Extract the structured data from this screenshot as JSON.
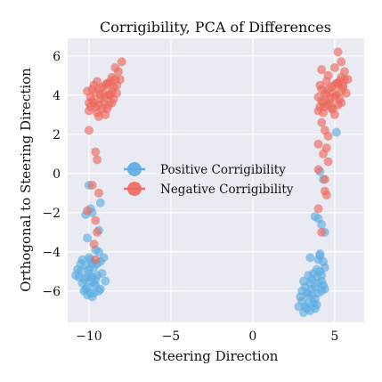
{
  "chart_data": {
    "type": "scatter",
    "title": "Corrigibility, PCA of Differences",
    "xlabel": "Steering Direction",
    "ylabel": "Orthogonal to Steering Direction",
    "xlim": [
      -11.3,
      6.8
    ],
    "ylim": [
      -7.6,
      6.9
    ],
    "xticks": [
      -10,
      -5,
      0,
      5
    ],
    "yticks": [
      -6,
      -4,
      -2,
      0,
      2,
      4,
      6
    ],
    "xtick_labels": [
      "−10",
      "−5",
      "0",
      "5"
    ],
    "ytick_labels": [
      "−6",
      "−4",
      "−2",
      "0",
      "2",
      "4",
      "6"
    ],
    "grid": true,
    "legend_position": "center",
    "series": [
      {
        "name": "Positive Corrigibility",
        "color": "#5dade2",
        "points": [
          [
            -10.5,
            -5.0
          ],
          [
            -10.3,
            -5.4
          ],
          [
            -10.1,
            -5.8
          ],
          [
            -9.9,
            -6.1
          ],
          [
            -9.7,
            -5.6
          ],
          [
            -9.5,
            -5.2
          ],
          [
            -9.3,
            -5.9
          ],
          [
            -10.2,
            -4.7
          ],
          [
            -10.0,
            -4.9
          ],
          [
            -9.8,
            -5.3
          ],
          [
            -9.6,
            -5.7
          ],
          [
            -9.4,
            -6.0
          ],
          [
            -10.4,
            -5.6
          ],
          [
            -10.6,
            -5.3
          ],
          [
            -9.2,
            -5.1
          ],
          [
            -9.9,
            -4.4
          ],
          [
            -10.1,
            -6.2
          ],
          [
            -9.7,
            -4.8
          ],
          [
            -10.3,
            -6.0
          ],
          [
            -9.5,
            -4.6
          ],
          [
            -9.0,
            -5.5
          ],
          [
            -10.7,
            -4.9
          ],
          [
            -9.8,
            -6.3
          ],
          [
            -10.0,
            -5.1
          ],
          [
            -9.6,
            -5.4
          ],
          [
            -9.3,
            -4.5
          ],
          [
            -10.2,
            -5.9
          ],
          [
            -9.9,
            -5.5
          ],
          [
            -10.5,
            -4.6
          ],
          [
            -9.1,
            -4.3
          ],
          [
            -9.4,
            -4.0
          ],
          [
            -9.7,
            -6.1
          ],
          [
            -10.8,
            -5.2
          ],
          [
            -10.0,
            -4.3
          ],
          [
            -9.6,
            -3.9
          ],
          [
            -10.1,
            -5.3
          ],
          [
            -9.8,
            -4.6
          ],
          [
            -10.4,
            -4.4
          ],
          [
            -9.8,
            -2.0
          ],
          [
            -9.9,
            -1.8
          ],
          [
            -10.2,
            -2.1
          ],
          [
            -9.3,
            -1.5
          ],
          [
            -10.0,
            -0.6
          ],
          [
            -9.4,
            -2.9
          ],
          [
            -10.1,
            -3.3
          ],
          [
            3.0,
            -6.5
          ],
          [
            3.2,
            -6.8
          ],
          [
            3.4,
            -6.2
          ],
          [
            3.6,
            -5.9
          ],
          [
            3.8,
            -6.4
          ],
          [
            4.0,
            -5.6
          ],
          [
            4.2,
            -6.0
          ],
          [
            3.5,
            -7.0
          ],
          [
            3.7,
            -6.6
          ],
          [
            3.9,
            -5.3
          ],
          [
            4.1,
            -5.0
          ],
          [
            4.3,
            -5.7
          ],
          [
            3.3,
            -6.1
          ],
          [
            3.1,
            -7.1
          ],
          [
            4.4,
            -4.8
          ],
          [
            4.0,
            -4.4
          ],
          [
            3.6,
            -5.4
          ],
          [
            3.8,
            -6.9
          ],
          [
            4.2,
            -5.2
          ],
          [
            3.4,
            -6.6
          ],
          [
            3.9,
            -4.9
          ],
          [
            4.1,
            -4.2
          ],
          [
            3.2,
            -5.8
          ],
          [
            3.0,
            -6.0
          ],
          [
            4.3,
            -4.5
          ],
          [
            3.7,
            -5.1
          ],
          [
            3.5,
            -5.6
          ],
          [
            4.0,
            -6.1
          ],
          [
            3.3,
            -6.9
          ],
          [
            2.9,
            -6.3
          ],
          [
            3.6,
            -6.2
          ],
          [
            4.2,
            -5.5
          ],
          [
            3.8,
            -5.8
          ],
          [
            4.1,
            -4.1
          ],
          [
            3.5,
            -4.3
          ],
          [
            3.4,
            -5.2
          ],
          [
            3.9,
            -6.7
          ],
          [
            4.4,
            -5.9
          ],
          [
            3.1,
            -5.5
          ],
          [
            2.8,
            -6.8
          ],
          [
            4.0,
            -2.3
          ],
          [
            4.2,
            -2.6
          ],
          [
            3.8,
            -2.2
          ],
          [
            4.1,
            0.1
          ],
          [
            4.3,
            -0.3
          ],
          [
            5.1,
            2.1
          ],
          [
            4.4,
            -3.0
          ]
        ]
      },
      {
        "name": "Negative Corrigibility",
        "color": "#ec6a5e",
        "points": [
          [
            -10.0,
            3.2
          ],
          [
            -9.8,
            3.7
          ],
          [
            -9.6,
            4.1
          ],
          [
            -9.4,
            3.5
          ],
          [
            -9.2,
            4.4
          ],
          [
            -9.0,
            3.9
          ],
          [
            -8.8,
            4.6
          ],
          [
            -8.6,
            4.2
          ],
          [
            -8.4,
            4.8
          ],
          [
            -9.7,
            4.5
          ],
          [
            -9.5,
            3.1
          ],
          [
            -9.3,
            4.0
          ],
          [
            -9.1,
            3.6
          ],
          [
            -8.9,
            3.3
          ],
          [
            -8.7,
            4.0
          ],
          [
            -8.5,
            3.8
          ],
          [
            -8.3,
            4.5
          ],
          [
            -9.9,
            3.9
          ],
          [
            -10.1,
            4.2
          ],
          [
            -9.5,
            4.7
          ],
          [
            -9.0,
            3.0
          ],
          [
            -8.8,
            3.5
          ],
          [
            -9.2,
            3.3
          ],
          [
            -8.6,
            4.9
          ],
          [
            -8.2,
            5.2
          ],
          [
            -8.0,
            5.7
          ],
          [
            -8.4,
            5.4
          ],
          [
            -9.6,
            3.4
          ],
          [
            -9.4,
            4.3
          ],
          [
            -8.7,
            4.7
          ],
          [
            -9.1,
            4.1
          ],
          [
            -8.9,
            4.6
          ],
          [
            -9.3,
            3.8
          ],
          [
            -8.5,
            4.4
          ],
          [
            -9.7,
            3.6
          ],
          [
            -9.9,
            3.4
          ],
          [
            -8.3,
            4.1
          ],
          [
            -8.1,
            4.8
          ],
          [
            -9.0,
            4.5
          ],
          [
            -8.6,
            3.6
          ],
          [
            -9.8,
            4.3
          ],
          [
            -10.0,
            3.6
          ],
          [
            -9.4,
            2.9
          ],
          [
            -8.8,
            4.0
          ],
          [
            -10.0,
            2.2
          ],
          [
            -9.6,
            1.1
          ],
          [
            -9.5,
            0.7
          ],
          [
            -9.8,
            -0.6
          ],
          [
            -9.4,
            -1.0
          ],
          [
            -10.1,
            -1.9
          ],
          [
            -9.6,
            -2.4
          ],
          [
            -9.5,
            -3.0
          ],
          [
            -9.7,
            -3.6
          ],
          [
            -9.6,
            -4.4
          ],
          [
            4.0,
            3.2
          ],
          [
            4.2,
            3.7
          ],
          [
            4.4,
            4.1
          ],
          [
            4.6,
            3.5
          ],
          [
            4.8,
            4.4
          ],
          [
            5.0,
            3.9
          ],
          [
            5.2,
            4.6
          ],
          [
            5.4,
            4.2
          ],
          [
            5.6,
            4.8
          ],
          [
            4.1,
            4.5
          ],
          [
            4.3,
            3.1
          ],
          [
            4.5,
            4.0
          ],
          [
            4.7,
            3.6
          ],
          [
            4.9,
            3.3
          ],
          [
            5.1,
            4.0
          ],
          [
            5.3,
            3.8
          ],
          [
            5.5,
            4.5
          ],
          [
            4.0,
            3.9
          ],
          [
            4.2,
            4.3
          ],
          [
            4.5,
            4.7
          ],
          [
            5.0,
            3.0
          ],
          [
            5.2,
            3.5
          ],
          [
            4.8,
            3.3
          ],
          [
            5.4,
            4.9
          ],
          [
            5.6,
            5.2
          ],
          [
            5.4,
            5.7
          ],
          [
            5.2,
            6.2
          ],
          [
            4.4,
            3.4
          ],
          [
            4.6,
            4.3
          ],
          [
            5.3,
            4.7
          ],
          [
            4.9,
            4.1
          ],
          [
            5.1,
            4.6
          ],
          [
            4.7,
            3.8
          ],
          [
            5.5,
            4.4
          ],
          [
            4.3,
            3.6
          ],
          [
            4.1,
            3.4
          ],
          [
            5.7,
            4.1
          ],
          [
            5.8,
            4.8
          ],
          [
            5.0,
            4.5
          ],
          [
            5.4,
            3.6
          ],
          [
            4.2,
            5.3
          ],
          [
            4.6,
            5.0
          ],
          [
            5.0,
            5.4
          ],
          [
            4.2,
            2.6
          ],
          [
            4.4,
            2.2
          ],
          [
            4.0,
            1.5
          ],
          [
            4.3,
            1.0
          ],
          [
            4.5,
            1.3
          ],
          [
            4.6,
            0.6
          ],
          [
            4.4,
            -0.3
          ],
          [
            4.4,
            -0.9
          ],
          [
            4.5,
            -1.1
          ],
          [
            4.0,
            -1.8
          ],
          [
            4.2,
            -3.0
          ],
          [
            4.6,
            1.9
          ],
          [
            4.0,
            0.2
          ]
        ]
      }
    ]
  }
}
